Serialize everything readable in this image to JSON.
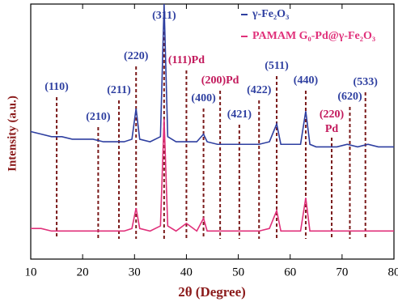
{
  "chart_data": {
    "type": "line",
    "x_label": "2θ (Degree)",
    "y_label": "Intensity (a.u.)",
    "x": [
      10,
      12,
      14,
      16,
      18,
      20,
      22,
      24,
      26,
      28,
      29.5,
      30.3,
      31,
      33,
      35,
      35.7,
      36.4,
      38,
      40,
      42,
      43.3,
      44,
      46,
      48,
      50,
      52,
      54,
      56,
      57.4,
      58.2,
      60,
      62,
      63,
      63.8,
      65,
      67,
      69,
      71,
      73,
      75,
      77,
      80
    ],
    "series": [
      {
        "name": "γ-Fe₂O₃",
        "color": "#2e3fa0",
        "values": [
          50,
          49,
          48,
          48,
          47,
          47,
          47,
          46,
          46,
          46,
          47,
          59,
          47,
          46,
          48,
          100,
          48,
          46,
          46,
          46,
          49,
          46,
          45,
          45,
          45,
          45,
          45,
          46,
          53,
          45,
          45,
          45,
          58,
          45,
          44,
          44,
          44,
          45,
          44,
          45,
          44,
          44
        ]
      },
      {
        "name": "PAMAM G₀-Pd@γ-Fe₂O₃",
        "color": "#e0307a",
        "values": [
          12,
          12,
          11,
          11,
          11,
          11,
          11,
          11,
          11,
          11,
          12,
          20,
          12,
          11,
          13,
          55,
          13,
          11,
          14,
          11,
          16,
          11,
          11,
          11,
          11,
          11,
          11,
          12,
          19,
          11,
          11,
          11,
          24,
          11,
          11,
          11,
          11,
          11,
          11,
          11,
          11,
          11
        ]
      }
    ],
    "xlim": [
      10,
      80
    ],
    "xticks": [
      10,
      20,
      30,
      40,
      50,
      60,
      70,
      80
    ],
    "ylim": [
      0,
      100
    ],
    "annotations": [
      {
        "text": "(110)",
        "x": 15,
        "color": "#2e3fa0"
      },
      {
        "text": "(210)",
        "x": 23,
        "color": "#2e3fa0"
      },
      {
        "text": "(211)",
        "x": 27,
        "color": "#2e3fa0"
      },
      {
        "text": "(220)",
        "x": 30.3,
        "color": "#2e3fa0"
      },
      {
        "text": "(311)",
        "x": 35.7,
        "color": "#2e3fa0"
      },
      {
        "text": "(111)Pd",
        "x": 40,
        "color": "#c2185b"
      },
      {
        "text": "(400)",
        "x": 43.3,
        "color": "#2e3fa0"
      },
      {
        "text": "(200)Pd",
        "x": 46.5,
        "color": "#c2185b"
      },
      {
        "text": "(421)",
        "x": 50.2,
        "color": "#2e3fa0"
      },
      {
        "text": "(422)",
        "x": 54,
        "color": "#2e3fa0"
      },
      {
        "text": "(511)",
        "x": 57.4,
        "color": "#2e3fa0"
      },
      {
        "text": "(440)",
        "x": 63,
        "color": "#2e3fa0"
      },
      {
        "text": "(220)",
        "subtext": "Pd",
        "x": 68,
        "color": "#c2185b"
      },
      {
        "text": "(620)",
        "x": 71.5,
        "color": "#2e3fa0"
      },
      {
        "text": "(533)",
        "x": 74.5,
        "color": "#2e3fa0"
      }
    ]
  }
}
